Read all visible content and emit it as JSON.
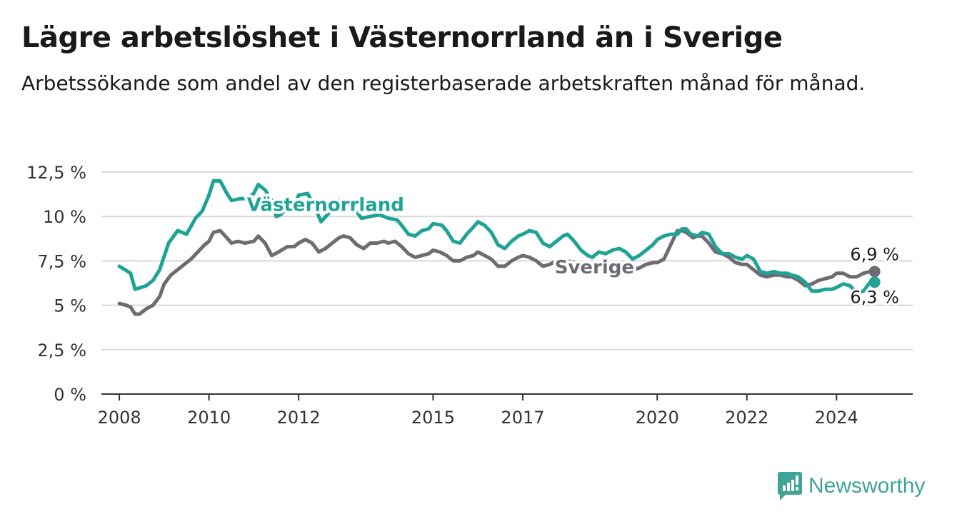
{
  "header": {
    "title": "Lägre arbetslöshet i Västernorrland än i Sverige",
    "subtitle": "Arbetssökande som andel av den registerbaserade arbetskraften månad för månad."
  },
  "brand": {
    "name": "Newsworthy",
    "color": "#3fa398"
  },
  "chart_data": {
    "type": "line",
    "title": "Lägre arbetslöshet i Västernorrland än i Sverige",
    "xlabel": "",
    "ylabel": "",
    "ylim": [
      0,
      12.5
    ],
    "y_ticks": [
      "0 %",
      "2,5 %",
      "5 %",
      "7,5 %",
      "10 %",
      "12,5 %"
    ],
    "y_tick_values": [
      0,
      2.5,
      5,
      7.5,
      10,
      12.5
    ],
    "x_ticks": [
      "2008",
      "2010",
      "2012",
      "2015",
      "2017",
      "2020",
      "2022",
      "2024"
    ],
    "x_tick_values": [
      2008,
      2010,
      2012,
      2015,
      2017,
      2020,
      2022,
      2024
    ],
    "grid": true,
    "series": [
      {
        "name": "Västernorrland",
        "color": "#1fa396",
        "end_label": "6,3 %",
        "points": [
          [
            2008.0,
            7.2
          ],
          [
            2008.25,
            6.8
          ],
          [
            2008.35,
            5.9
          ],
          [
            2008.6,
            6.1
          ],
          [
            2008.75,
            6.4
          ],
          [
            2008.9,
            7.0
          ],
          [
            2009.1,
            8.5
          ],
          [
            2009.3,
            9.2
          ],
          [
            2009.5,
            9.0
          ],
          [
            2009.7,
            9.9
          ],
          [
            2009.85,
            10.3
          ],
          [
            2010.0,
            11.2
          ],
          [
            2010.1,
            12.0
          ],
          [
            2010.25,
            12.0
          ],
          [
            2010.4,
            11.3
          ],
          [
            2010.5,
            10.9
          ],
          [
            2010.7,
            11.0
          ],
          [
            2010.85,
            11.0
          ],
          [
            2011.0,
            11.3
          ],
          [
            2011.1,
            11.8
          ],
          [
            2011.25,
            11.5
          ],
          [
            2011.4,
            10.9
          ],
          [
            2011.5,
            10.0
          ],
          [
            2011.6,
            10.1
          ],
          [
            2011.75,
            10.5
          ],
          [
            2011.9,
            10.4
          ],
          [
            2012.0,
            11.2
          ],
          [
            2012.2,
            11.3
          ],
          [
            2012.4,
            10.3
          ],
          [
            2012.5,
            9.7
          ],
          [
            2012.75,
            10.4
          ],
          [
            2012.9,
            10.9
          ],
          [
            2013.0,
            10.6
          ],
          [
            2013.2,
            10.6
          ],
          [
            2013.4,
            9.9
          ],
          [
            2013.6,
            10.0
          ],
          [
            2013.8,
            10.1
          ],
          [
            2014.0,
            9.9
          ],
          [
            2014.2,
            9.8
          ],
          [
            2014.3,
            9.5
          ],
          [
            2014.45,
            9.0
          ],
          [
            2014.6,
            8.9
          ],
          [
            2014.75,
            9.2
          ],
          [
            2014.9,
            9.3
          ],
          [
            2015.0,
            9.6
          ],
          [
            2015.2,
            9.5
          ],
          [
            2015.3,
            9.2
          ],
          [
            2015.45,
            8.6
          ],
          [
            2015.6,
            8.5
          ],
          [
            2015.75,
            9.0
          ],
          [
            2015.9,
            9.4
          ],
          [
            2016.0,
            9.7
          ],
          [
            2016.15,
            9.5
          ],
          [
            2016.3,
            9.1
          ],
          [
            2016.45,
            8.4
          ],
          [
            2016.6,
            8.2
          ],
          [
            2016.75,
            8.6
          ],
          [
            2016.9,
            8.9
          ],
          [
            2017.0,
            9.0
          ],
          [
            2017.15,
            9.2
          ],
          [
            2017.3,
            9.1
          ],
          [
            2017.45,
            8.5
          ],
          [
            2017.6,
            8.3
          ],
          [
            2017.75,
            8.6
          ],
          [
            2017.9,
            8.9
          ],
          [
            2018.0,
            9.0
          ],
          [
            2018.15,
            8.6
          ],
          [
            2018.3,
            8.1
          ],
          [
            2018.45,
            7.8
          ],
          [
            2018.55,
            7.7
          ],
          [
            2018.7,
            8.0
          ],
          [
            2018.85,
            7.9
          ],
          [
            2019.0,
            8.1
          ],
          [
            2019.15,
            8.2
          ],
          [
            2019.3,
            8.0
          ],
          [
            2019.45,
            7.6
          ],
          [
            2019.6,
            7.8
          ],
          [
            2019.75,
            8.1
          ],
          [
            2019.9,
            8.4
          ],
          [
            2020.0,
            8.7
          ],
          [
            2020.15,
            8.9
          ],
          [
            2020.3,
            9.0
          ],
          [
            2020.45,
            9.0
          ],
          [
            2020.55,
            9.3
          ],
          [
            2020.65,
            9.3
          ],
          [
            2020.75,
            9.0
          ],
          [
            2020.9,
            8.9
          ],
          [
            2021.0,
            9.1
          ],
          [
            2021.15,
            9.0
          ],
          [
            2021.3,
            8.3
          ],
          [
            2021.45,
            7.9
          ],
          [
            2021.6,
            7.9
          ],
          [
            2021.75,
            7.7
          ],
          [
            2021.9,
            7.6
          ],
          [
            2022.0,
            7.8
          ],
          [
            2022.15,
            7.6
          ],
          [
            2022.3,
            6.9
          ],
          [
            2022.45,
            6.8
          ],
          [
            2022.6,
            6.9
          ],
          [
            2022.75,
            6.8
          ],
          [
            2022.9,
            6.8
          ],
          [
            2023.0,
            6.7
          ],
          [
            2023.15,
            6.6
          ],
          [
            2023.3,
            6.3
          ],
          [
            2023.45,
            5.8
          ],
          [
            2023.6,
            5.8
          ],
          [
            2023.75,
            5.9
          ],
          [
            2023.9,
            5.9
          ],
          [
            2024.0,
            6.0
          ],
          [
            2024.15,
            6.2
          ],
          [
            2024.3,
            6.1
          ],
          [
            2024.45,
            5.7
          ],
          [
            2024.6,
            5.8
          ],
          [
            2024.75,
            6.3
          ],
          [
            2024.85,
            6.3
          ]
        ]
      },
      {
        "name": "Sverige",
        "color": "#6e6c72",
        "end_label": "6,9 %",
        "points": [
          [
            2008.0,
            5.1
          ],
          [
            2008.15,
            5.0
          ],
          [
            2008.25,
            4.9
          ],
          [
            2008.35,
            4.5
          ],
          [
            2008.45,
            4.5
          ],
          [
            2008.6,
            4.8
          ],
          [
            2008.75,
            5.0
          ],
          [
            2008.9,
            5.5
          ],
          [
            2009.0,
            6.2
          ],
          [
            2009.15,
            6.7
          ],
          [
            2009.3,
            7.0
          ],
          [
            2009.45,
            7.3
          ],
          [
            2009.6,
            7.6
          ],
          [
            2009.75,
            8.0
          ],
          [
            2009.9,
            8.4
          ],
          [
            2010.0,
            8.6
          ],
          [
            2010.1,
            9.1
          ],
          [
            2010.25,
            9.2
          ],
          [
            2010.4,
            8.8
          ],
          [
            2010.5,
            8.5
          ],
          [
            2010.65,
            8.6
          ],
          [
            2010.8,
            8.5
          ],
          [
            2011.0,
            8.6
          ],
          [
            2011.1,
            8.9
          ],
          [
            2011.25,
            8.5
          ],
          [
            2011.4,
            7.8
          ],
          [
            2011.55,
            8.0
          ],
          [
            2011.75,
            8.3
          ],
          [
            2011.9,
            8.3
          ],
          [
            2012.0,
            8.5
          ],
          [
            2012.15,
            8.7
          ],
          [
            2012.3,
            8.5
          ],
          [
            2012.45,
            8.0
          ],
          [
            2012.6,
            8.2
          ],
          [
            2012.75,
            8.5
          ],
          [
            2012.9,
            8.8
          ],
          [
            2013.0,
            8.9
          ],
          [
            2013.15,
            8.8
          ],
          [
            2013.3,
            8.4
          ],
          [
            2013.45,
            8.2
          ],
          [
            2013.6,
            8.5
          ],
          [
            2013.75,
            8.5
          ],
          [
            2013.9,
            8.6
          ],
          [
            2014.0,
            8.5
          ],
          [
            2014.15,
            8.6
          ],
          [
            2014.3,
            8.3
          ],
          [
            2014.45,
            7.9
          ],
          [
            2014.6,
            7.7
          ],
          [
            2014.75,
            7.8
          ],
          [
            2014.9,
            7.9
          ],
          [
            2015.0,
            8.1
          ],
          [
            2015.15,
            8.0
          ],
          [
            2015.3,
            7.8
          ],
          [
            2015.45,
            7.5
          ],
          [
            2015.6,
            7.5
          ],
          [
            2015.75,
            7.7
          ],
          [
            2015.9,
            7.8
          ],
          [
            2016.0,
            8.0
          ],
          [
            2016.15,
            7.8
          ],
          [
            2016.3,
            7.6
          ],
          [
            2016.45,
            7.2
          ],
          [
            2016.6,
            7.2
          ],
          [
            2016.75,
            7.5
          ],
          [
            2016.9,
            7.7
          ],
          [
            2017.0,
            7.8
          ],
          [
            2017.15,
            7.7
          ],
          [
            2017.3,
            7.5
          ],
          [
            2017.45,
            7.2
          ],
          [
            2017.6,
            7.3
          ],
          [
            2017.75,
            7.5
          ],
          [
            2017.9,
            7.5
          ],
          [
            2018.0,
            7.5
          ],
          [
            2018.15,
            7.4
          ],
          [
            2018.3,
            7.2
          ],
          [
            2018.45,
            7.0
          ],
          [
            2018.6,
            7.0
          ],
          [
            2018.75,
            7.1
          ],
          [
            2018.9,
            7.1
          ],
          [
            2019.0,
            7.2
          ],
          [
            2019.15,
            7.2
          ],
          [
            2019.3,
            7.2
          ],
          [
            2019.45,
            7.0
          ],
          [
            2019.6,
            7.1
          ],
          [
            2019.75,
            7.3
          ],
          [
            2019.9,
            7.4
          ],
          [
            2020.0,
            7.4
          ],
          [
            2020.15,
            7.6
          ],
          [
            2020.3,
            8.4
          ],
          [
            2020.45,
            9.2
          ],
          [
            2020.55,
            9.2
          ],
          [
            2020.65,
            9.1
          ],
          [
            2020.8,
            8.8
          ],
          [
            2020.9,
            8.9
          ],
          [
            2021.0,
            8.9
          ],
          [
            2021.15,
            8.5
          ],
          [
            2021.3,
            8.0
          ],
          [
            2021.45,
            7.9
          ],
          [
            2021.6,
            7.7
          ],
          [
            2021.75,
            7.4
          ],
          [
            2021.9,
            7.3
          ],
          [
            2022.0,
            7.3
          ],
          [
            2022.15,
            7.0
          ],
          [
            2022.3,
            6.7
          ],
          [
            2022.45,
            6.6
          ],
          [
            2022.6,
            6.7
          ],
          [
            2022.75,
            6.7
          ],
          [
            2022.9,
            6.6
          ],
          [
            2023.0,
            6.6
          ],
          [
            2023.15,
            6.4
          ],
          [
            2023.3,
            6.1
          ],
          [
            2023.45,
            6.2
          ],
          [
            2023.6,
            6.4
          ],
          [
            2023.75,
            6.5
          ],
          [
            2023.9,
            6.6
          ],
          [
            2024.0,
            6.8
          ],
          [
            2024.15,
            6.8
          ],
          [
            2024.3,
            6.6
          ],
          [
            2024.45,
            6.6
          ],
          [
            2024.6,
            6.8
          ],
          [
            2024.75,
            6.9
          ],
          [
            2024.85,
            6.9
          ]
        ]
      }
    ],
    "annotations": [
      {
        "text": "Västernorrland",
        "series": 0,
        "at_x": 2012.6,
        "at_y": 10.3
      },
      {
        "text": "Sverige",
        "series": 1,
        "at_x": 2018.6,
        "at_y": 6.8
      }
    ]
  }
}
